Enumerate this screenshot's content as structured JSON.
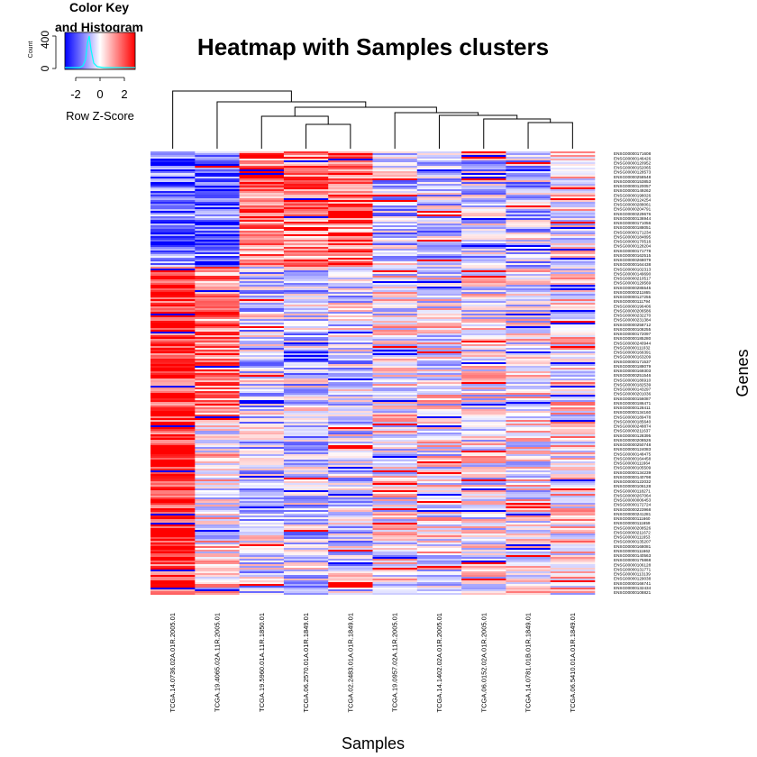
{
  "chart_data": {
    "type": "heatmap",
    "title": "Heatmap with Samples clusters",
    "xlabel": "Samples",
    "ylabel": "Genes",
    "samples": [
      "TCGA.14.0736.02A.01R.2005.01",
      "TCGA.19.4065.02A.11R.2005.01",
      "TCGA.19.5960.01A.11R.1850.01",
      "TCGA.06.2570.01A.01R.1849.01",
      "TCGA.02.2483.01A.01R.1849.01",
      "TCGA.19.0957.02A.11R.2005.01",
      "TCGA.14.1402.02A.01R.2005.01",
      "TCGA.06.0152.02A.01R.2005.01",
      "TCGA.14.0781.01B.01R.1849.01",
      "TCGA.06.5410.01A.01R.1849.01"
    ],
    "genes": [
      "ENSG00000171608",
      "ENSG00000146426",
      "ENSG00000120952",
      "ENSG00000152065",
      "ENSG00000128573",
      "ENSG00000258548",
      "ENSG00000153853",
      "ENSG00000120057",
      "ENSG00000149262",
      "ENSG00000198026",
      "ENSG00000124254",
      "ENSG00000288061",
      "ENSG00000204791",
      "ENSG00000229676",
      "ENSG00000136944",
      "ENSG00000171056",
      "ENSG00000188051",
      "ENSG00000171234",
      "ENSG00000184895",
      "ENSG00000170516",
      "ENSG00000128204",
      "ENSG00000171778",
      "ENSG00000162515",
      "ENSG00000268079",
      "ENSG00000164438",
      "ENSG00000102313",
      "ENSG00000149690",
      "ENSG00000210517",
      "ENSG00000129569",
      "ENSG00000285545",
      "ENSG00000211865",
      "ENSG00000127255",
      "ENSG00000111794",
      "ENSG00000196406",
      "ENSG00000206586",
      "ENSG00000232270",
      "ENSG00000231384",
      "ENSG00000258712",
      "ENSG00000108255",
      "ENSG00000172097",
      "ENSG00000185280",
      "ENSG00000240944",
      "ENSG00000111032",
      "ENSG00000166391",
      "ENSG00000163209",
      "ENSG00000171537",
      "ENSG00000188079",
      "ENSG00000169303",
      "ENSG00000251546",
      "ENSG00000186910",
      "ENSG00000182539",
      "ENSG00000143297",
      "ENSG00000201036",
      "ENSG00000156087",
      "ENSG00000186471",
      "ENSG00000128411",
      "ENSG00000134160",
      "ENSG00000189478",
      "ENSG00000185640",
      "ENSG00000248874",
      "ENSG00000211637",
      "ENSG00000128395",
      "ENSG00000208526",
      "ENSG00000250748",
      "ENSG00000124083",
      "ENSG00000148475",
      "ENSG00000164458",
      "ENSG00000111664",
      "ENSG00000105509",
      "ENSG00000134239",
      "ENSG00000140798",
      "ENSG00000122032",
      "ENSG00000106128",
      "ENSG00000118271",
      "ENSG00000267064",
      "ENSG00000006453",
      "ENSG00000172724",
      "ENSG00000223968",
      "ENSG00000241281",
      "ENSG00000111660",
      "ENSG00000111659",
      "ENSG00000208526",
      "ENSG00000211672",
      "ENSG00000111653",
      "ENSG00000135207",
      "ENSG00000168081",
      "ENSG00000111662",
      "ENSG00000140563",
      "ENSG00000175868",
      "ENSG00000106128",
      "ENSG00000131771",
      "ENSG00000113139",
      "ENSG00000129038",
      "ENSG00000166741",
      "ENSG00000132434",
      "ENSG00000108821"
    ]
  },
  "color_key": {
    "title": "Color Key\nand Histogram",
    "title_line1": "Color Key",
    "title_line2": "and Histogram",
    "ylabel": "Count",
    "yticks": [
      "0",
      "400"
    ],
    "xticks": [
      "-2",
      "0",
      "2"
    ],
    "xlabel": "Row Z-Score",
    "colors": {
      "low": "#0000FF",
      "mid": "#FFFFFF",
      "high": "#FF0000",
      "histogram": "#00FFFF"
    }
  }
}
